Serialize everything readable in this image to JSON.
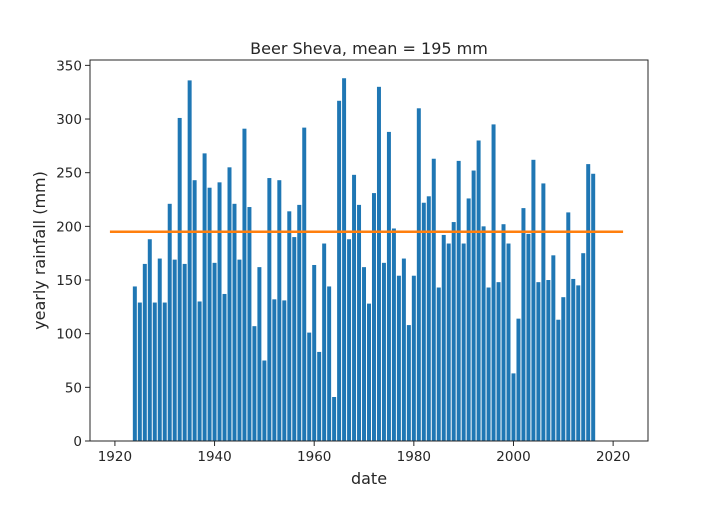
{
  "chart_data": {
    "type": "bar",
    "title": "Beer Sheva, mean = 195 mm",
    "xlabel": "date",
    "ylabel": "yearly rainfall (mm)",
    "xlim": [
      1915,
      2027
    ],
    "ylim": [
      0,
      355
    ],
    "xticks": [
      1920,
      1940,
      1960,
      1980,
      2000,
      2020
    ],
    "yticks": [
      0,
      50,
      100,
      150,
      200,
      250,
      300,
      350
    ],
    "grid": false,
    "bar_color": "#1f77b4",
    "mean_line": {
      "value": 195,
      "x_start": 1919,
      "x_end": 2022,
      "color": "#ff7f0e"
    },
    "x": [
      1924,
      1925,
      1926,
      1927,
      1928,
      1929,
      1930,
      1931,
      1932,
      1933,
      1934,
      1935,
      1936,
      1937,
      1938,
      1939,
      1940,
      1941,
      1942,
      1943,
      1944,
      1945,
      1946,
      1947,
      1948,
      1949,
      1950,
      1951,
      1952,
      1953,
      1954,
      1955,
      1956,
      1957,
      1958,
      1959,
      1960,
      1961,
      1962,
      1963,
      1964,
      1965,
      1966,
      1967,
      1968,
      1969,
      1970,
      1971,
      1972,
      1973,
      1974,
      1975,
      1976,
      1977,
      1978,
      1979,
      1980,
      1981,
      1982,
      1983,
      1984,
      1985,
      1986,
      1987,
      1988,
      1989,
      1990,
      1991,
      1992,
      1993,
      1994,
      1995,
      1996,
      1997,
      1998,
      1999,
      2000,
      2001,
      2002,
      2003,
      2004,
      2005,
      2006,
      2007,
      2008,
      2009,
      2010,
      2011,
      2012,
      2013,
      2014,
      2015,
      2016
    ],
    "values": [
      144,
      129,
      165,
      188,
      129,
      170,
      129,
      221,
      169,
      301,
      165,
      336,
      243,
      130,
      268,
      236,
      166,
      241,
      137,
      255,
      221,
      169,
      291,
      218,
      107,
      162,
      75,
      245,
      132,
      243,
      131,
      214,
      190,
      220,
      292,
      101,
      164,
      83,
      184,
      144,
      41,
      317,
      338,
      188,
      248,
      220,
      162,
      128,
      231,
      330,
      166,
      288,
      198,
      154,
      170,
      108,
      154,
      310,
      222,
      228,
      263,
      143,
      192,
      184,
      204,
      261,
      184,
      226,
      252,
      280,
      200,
      143,
      295,
      148,
      202,
      184,
      63,
      114,
      217,
      193,
      262,
      148,
      240,
      150,
      173,
      113,
      134,
      213,
      151,
      145,
      175,
      258,
      249
    ]
  }
}
